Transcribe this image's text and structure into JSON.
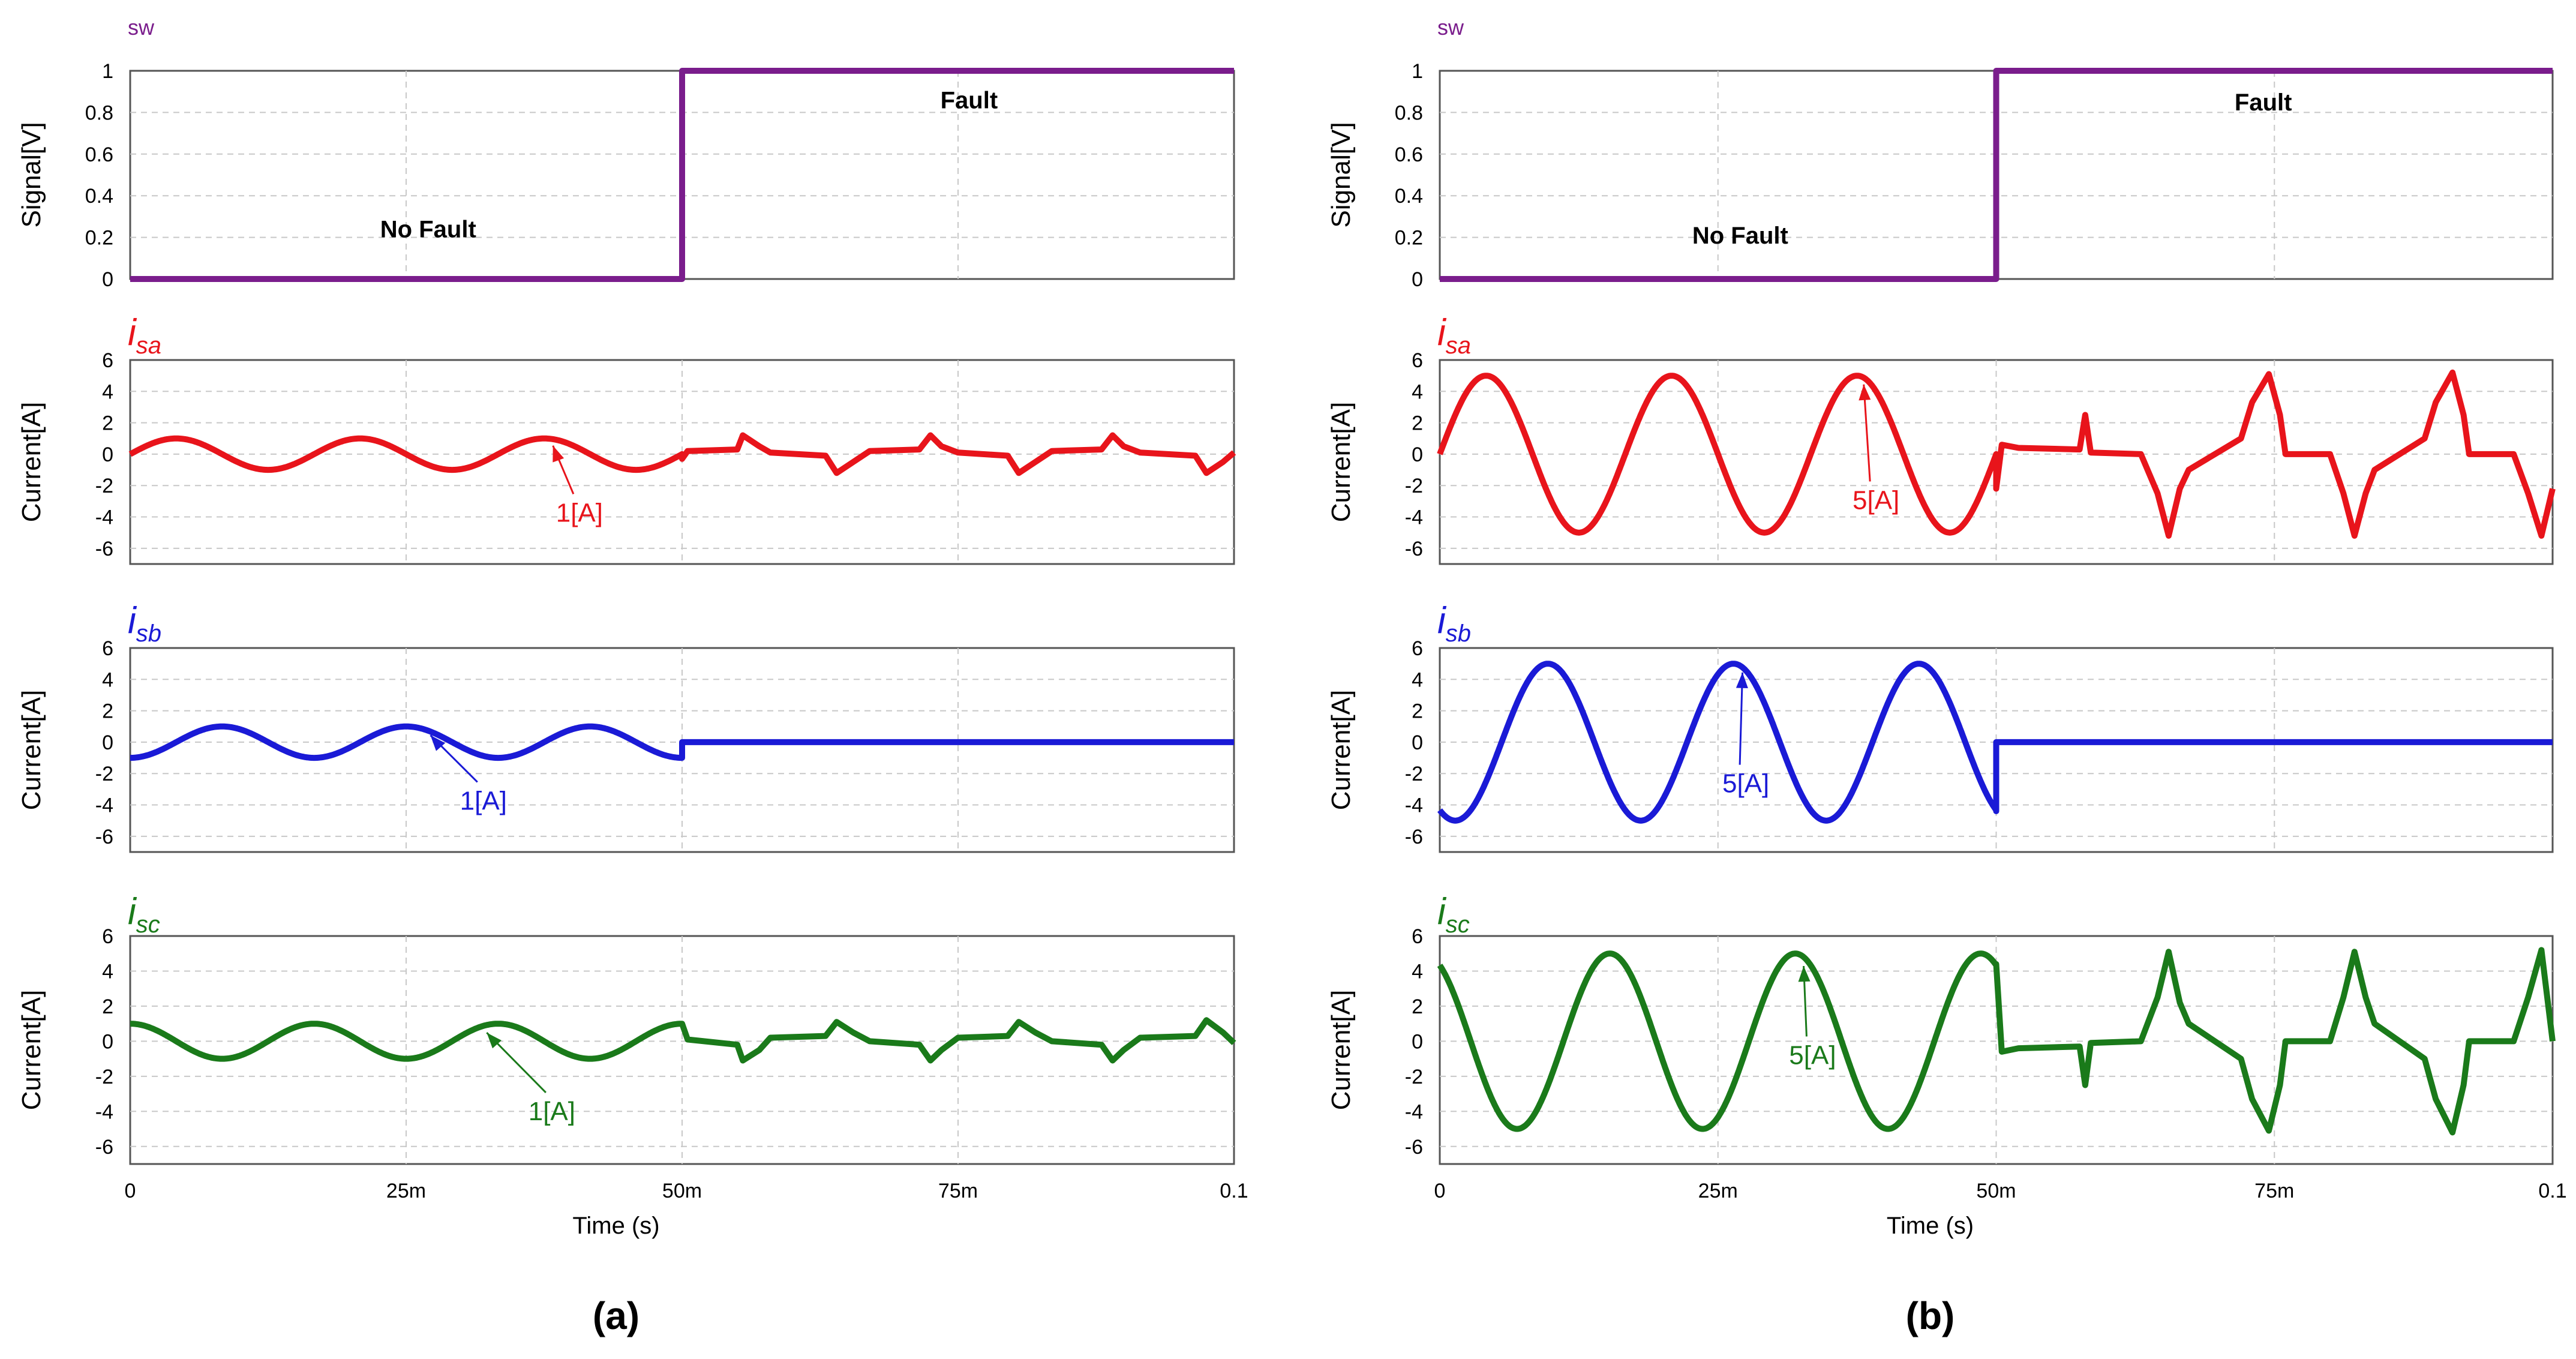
{
  "chart_data": [
    {
      "panel_label": "(a)",
      "charts": [
        {
          "title": "sw",
          "type": "line",
          "ylabel": "Signal[V]",
          "ylim": [
            0,
            1
          ],
          "yticks": [
            "0",
            "0.2",
            "0.4",
            "0.6",
            "0.8",
            "1"
          ],
          "series": [
            {
              "name": "sw",
              "color": "#7a1d8c",
              "x": [
                0,
                0.05,
                0.05,
                0.1
              ],
              "y": [
                0,
                0,
                1,
                1
              ]
            }
          ],
          "annotations": [
            {
              "text": "No Fault",
              "x": 0.027,
              "y": 0.2
            },
            {
              "text": "Fault",
              "x": 0.076,
              "y": 0.82
            }
          ]
        },
        {
          "title": "i",
          "title_sub": "sa",
          "color": "#e8141b",
          "type": "line",
          "ylabel": "Current[A]",
          "ylim": [
            -7,
            6
          ],
          "yticks": [
            "-6",
            "-4",
            "-2",
            "0",
            "2",
            "4",
            "6"
          ],
          "pre_fault": {
            "amplitude": 1,
            "frequency_hz": 60,
            "phase_deg": 0
          },
          "post_fault": [
            [
              0.05,
              -0.3
            ],
            [
              0.0505,
              0.2
            ],
            [
              0.055,
              0.3
            ],
            [
              0.0555,
              1.2
            ],
            [
              0.057,
              0.5
            ],
            [
              0.058,
              0.1
            ],
            [
              0.063,
              -0.1
            ],
            [
              0.064,
              -1.2
            ],
            [
              0.0655,
              -0.5
            ],
            [
              0.067,
              0.2
            ],
            [
              0.0715,
              0.3
            ],
            [
              0.0725,
              1.2
            ],
            [
              0.0735,
              0.5
            ],
            [
              0.075,
              0.1
            ],
            [
              0.0795,
              -0.1
            ],
            [
              0.0805,
              -1.2
            ],
            [
              0.082,
              -0.5
            ],
            [
              0.0835,
              0.2
            ],
            [
              0.088,
              0.3
            ],
            [
              0.089,
              1.2
            ],
            [
              0.09,
              0.5
            ],
            [
              0.0915,
              0.1
            ],
            [
              0.0965,
              -0.1
            ],
            [
              0.0975,
              -1.2
            ],
            [
              0.099,
              -0.5
            ],
            [
              0.1,
              0.1
            ]
          ],
          "callout": {
            "text": "1[A]",
            "x": 0.0407,
            "y": -4.3,
            "target_x": 0.0383,
            "target_y": 1.0
          }
        },
        {
          "title": "i",
          "title_sub": "sb",
          "color": "#1a1ad6",
          "type": "line",
          "ylabel": "Current[A]",
          "ylim": [
            -7,
            6
          ],
          "yticks": [
            "-6",
            "-4",
            "-2",
            "0",
            "2",
            "4",
            "6"
          ],
          "pre_fault": {
            "amplitude": 1,
            "frequency_hz": 60,
            "phase_deg": -90
          },
          "post_fault": [
            [
              0.05,
              -1.0
            ],
            [
              0.05,
              0
            ],
            [
              0.1,
              0
            ]
          ],
          "callout": {
            "text": "1[A]",
            "x": 0.032,
            "y": -4.3,
            "target_x": 0.0272,
            "target_y": 0.9
          }
        },
        {
          "title": "i",
          "title_sub": "sc",
          "color": "#1a7a1a",
          "type": "line",
          "ylabel": "Current[A]",
          "ylim": [
            -7,
            6
          ],
          "yticks": [
            "-6",
            "-4",
            "-2",
            "0",
            "2",
            "4",
            "6"
          ],
          "pre_fault": {
            "amplitude": 1,
            "frequency_hz": 60,
            "phase_deg": 90
          },
          "post_fault": [
            [
              0.05,
              1.0
            ],
            [
              0.0505,
              0.1
            ],
            [
              0.055,
              -0.2
            ],
            [
              0.0555,
              -1.1
            ],
            [
              0.057,
              -0.5
            ],
            [
              0.058,
              0.2
            ],
            [
              0.063,
              0.3
            ],
            [
              0.064,
              1.1
            ],
            [
              0.0655,
              0.5
            ],
            [
              0.067,
              0.0
            ],
            [
              0.0715,
              -0.2
            ],
            [
              0.0725,
              -1.1
            ],
            [
              0.0735,
              -0.5
            ],
            [
              0.075,
              0.2
            ],
            [
              0.0795,
              0.3
            ],
            [
              0.0805,
              1.1
            ],
            [
              0.082,
              0.5
            ],
            [
              0.0835,
              0.0
            ],
            [
              0.088,
              -0.2
            ],
            [
              0.089,
              -1.1
            ],
            [
              0.09,
              -0.5
            ],
            [
              0.0915,
              0.2
            ],
            [
              0.0965,
              0.3
            ],
            [
              0.0975,
              1.2
            ],
            [
              0.099,
              0.5
            ],
            [
              0.1,
              -0.1
            ]
          ],
          "callout": {
            "text": "1[A]",
            "x": 0.0382,
            "y": -4.5,
            "target_x": 0.0323,
            "target_y": 0.9
          }
        }
      ],
      "xticks": [
        "0",
        "25m",
        "50m",
        "75m",
        "0.1"
      ],
      "xtick_values": [
        0,
        0.025,
        0.05,
        0.075,
        0.1
      ],
      "xlabel": "Time (s)",
      "xlim": [
        0,
        0.1
      ]
    },
    {
      "panel_label": "(b)",
      "charts": [
        {
          "title": "sw",
          "type": "line",
          "ylabel": "Signal[V]",
          "ylim": [
            0,
            1
          ],
          "yticks": [
            "0",
            "0.2",
            "0.4",
            "0.6",
            "0.8",
            "1"
          ],
          "series": [
            {
              "name": "sw",
              "color": "#7a1d8c",
              "x": [
                0,
                0.05,
                0.05,
                0.1
              ],
              "y": [
                0,
                0,
                1,
                1
              ]
            }
          ],
          "annotations": [
            {
              "text": "No Fault",
              "x": 0.027,
              "y": 0.17
            },
            {
              "text": "Fault",
              "x": 0.074,
              "y": 0.81
            }
          ]
        },
        {
          "title": "i",
          "title_sub": "sa",
          "color": "#e8141b",
          "type": "line",
          "ylabel": "Current[A]",
          "ylim": [
            -7,
            6
          ],
          "yticks": [
            "-6",
            "-4",
            "-2",
            "0",
            "2",
            "4",
            "6"
          ],
          "pre_fault": {
            "amplitude": 5,
            "frequency_hz": 60,
            "phase_deg": 0
          },
          "post_fault": [
            [
              0.05,
              -2.2
            ],
            [
              0.0505,
              0.6
            ],
            [
              0.052,
              0.4
            ],
            [
              0.0575,
              0.3
            ],
            [
              0.058,
              2.5
            ],
            [
              0.0585,
              0.1
            ],
            [
              0.063,
              0.0
            ],
            [
              0.0645,
              -2.5
            ],
            [
              0.0655,
              -5.2
            ],
            [
              0.0665,
              -2.2
            ],
            [
              0.0673,
              -1.0
            ],
            [
              0.072,
              1.0
            ],
            [
              0.073,
              3.3
            ],
            [
              0.0745,
              5.1
            ],
            [
              0.0755,
              2.5
            ],
            [
              0.076,
              0.0
            ],
            [
              0.08,
              0.0
            ],
            [
              0.0812,
              -2.5
            ],
            [
              0.0822,
              -5.2
            ],
            [
              0.0832,
              -2.5
            ],
            [
              0.084,
              -1.0
            ],
            [
              0.0885,
              1.0
            ],
            [
              0.0895,
              3.3
            ],
            [
              0.091,
              5.2
            ],
            [
              0.092,
              2.5
            ],
            [
              0.0925,
              0.0
            ],
            [
              0.0965,
              0.0
            ],
            [
              0.0978,
              -2.5
            ],
            [
              0.099,
              -5.2
            ],
            [
              0.1,
              -2.2
            ]
          ],
          "callout": {
            "text": "5[A]",
            "x": 0.0392,
            "y": -3.5,
            "target_x": 0.0381,
            "target_y": 4.9
          }
        },
        {
          "title": "i",
          "title_sub": "sb",
          "color": "#1a1ad6",
          "type": "line",
          "ylabel": "Current[A]",
          "ylim": [
            -7,
            6
          ],
          "yticks": [
            "-6",
            "-4",
            "-2",
            "0",
            "2",
            "4",
            "6"
          ],
          "pre_fault": {
            "amplitude": 5,
            "frequency_hz": 60,
            "phase_deg": -120
          },
          "post_fault": [
            [
              0.05,
              -4.4
            ],
            [
              0.05,
              0
            ],
            [
              0.1,
              0
            ]
          ],
          "callout": {
            "text": "5[A]",
            "x": 0.0275,
            "y": -3.2,
            "target_x": 0.0272,
            "target_y": 4.9
          }
        },
        {
          "title": "i",
          "title_sub": "sc",
          "color": "#1a7a1a",
          "type": "line",
          "ylabel": "Current[A]",
          "ylim": [
            -7,
            6
          ],
          "yticks": [
            "-6",
            "-4",
            "-2",
            "0",
            "2",
            "4",
            "6"
          ],
          "pre_fault": {
            "amplitude": 5,
            "frequency_hz": 60,
            "phase_deg": 120
          },
          "post_fault": [
            [
              0.05,
              4.4
            ],
            [
              0.0505,
              -0.6
            ],
            [
              0.052,
              -0.4
            ],
            [
              0.0575,
              -0.3
            ],
            [
              0.058,
              -2.5
            ],
            [
              0.0585,
              -0.1
            ],
            [
              0.063,
              0.0
            ],
            [
              0.0645,
              2.5
            ],
            [
              0.0655,
              5.1
            ],
            [
              0.0665,
              2.2
            ],
            [
              0.0673,
              1.0
            ],
            [
              0.072,
              -1.0
            ],
            [
              0.073,
              -3.3
            ],
            [
              0.0745,
              -5.1
            ],
            [
              0.0755,
              -2.5
            ],
            [
              0.076,
              0.0
            ],
            [
              0.08,
              0.0
            ],
            [
              0.0812,
              2.5
            ],
            [
              0.0822,
              5.1
            ],
            [
              0.0832,
              2.5
            ],
            [
              0.084,
              1.0
            ],
            [
              0.0885,
              -1.0
            ],
            [
              0.0895,
              -3.3
            ],
            [
              0.091,
              -5.2
            ],
            [
              0.092,
              -2.5
            ],
            [
              0.0925,
              0.0
            ],
            [
              0.0965,
              0.0
            ],
            [
              0.0978,
              2.5
            ],
            [
              0.099,
              5.2
            ],
            [
              0.1,
              0.0
            ]
          ],
          "callout": {
            "text": "5[A]",
            "x": 0.0335,
            "y": -1.3,
            "target_x": 0.0327,
            "target_y": 4.7
          }
        }
      ],
      "xticks": [
        "0",
        "25m",
        "50m",
        "75m",
        "0.1"
      ],
      "xtick_values": [
        0,
        0.025,
        0.05,
        0.075,
        0.1
      ],
      "xlabel": "Time (s)",
      "xlim": [
        0,
        0.1
      ]
    }
  ]
}
